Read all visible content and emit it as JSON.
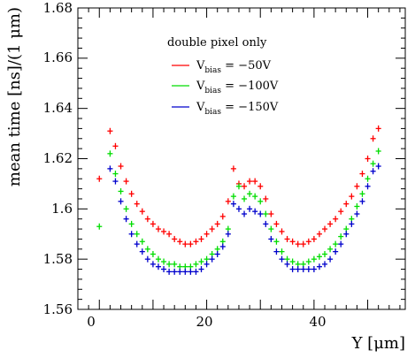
{
  "chart_data": {
    "type": "scatter",
    "title": "",
    "xlabel": "Y [μm]",
    "ylabel": "mean time [ns]/(1 μm)",
    "xlim": [
      -4,
      57
    ],
    "ylim": [
      1.56,
      1.68
    ],
    "x_ticks": [
      "0",
      "20",
      "40"
    ],
    "y_ticks": [
      "1.56",
      "1.58",
      "1.6",
      "1.62",
      "1.64",
      "1.66",
      "1.68"
    ],
    "legend": {
      "placement": "top-center",
      "header": "double pixel only",
      "entries": [
        {
          "prefix": "V",
          "sub": "bias",
          "suffix": " = −50V",
          "color": "#ff0000"
        },
        {
          "prefix": "V",
          "sub": "bias",
          "suffix": " = −100V",
          "color": "#00dd00"
        },
        {
          "prefix": "V",
          "sub": "bias",
          "suffix": " = −150V",
          "color": "#0000cc"
        }
      ]
    },
    "x": [
      0,
      1,
      2,
      3,
      4,
      5,
      6,
      7,
      8,
      9,
      10,
      11,
      12,
      13,
      14,
      15,
      16,
      17,
      18,
      19,
      20,
      21,
      22,
      23,
      24,
      25,
      26,
      27,
      28,
      29,
      30,
      31,
      32,
      33,
      34,
      35,
      36,
      37,
      38,
      39,
      40,
      41,
      42,
      43,
      44,
      45,
      46,
      47,
      48,
      49,
      50,
      51,
      52,
      53
    ],
    "series": [
      {
        "color": "#ff0000",
        "values": [
          1.612,
          null,
          1.631,
          1.625,
          1.617,
          1.611,
          1.606,
          1.602,
          1.599,
          1.596,
          1.594,
          1.592,
          1.591,
          1.59,
          1.588,
          1.587,
          1.586,
          1.586,
          1.587,
          1.588,
          1.59,
          1.592,
          1.594,
          1.597,
          1.603,
          1.616,
          1.61,
          1.609,
          1.611,
          1.611,
          1.609,
          1.604,
          1.598,
          1.594,
          1.591,
          1.588,
          1.587,
          1.586,
          1.586,
          1.587,
          1.588,
          1.59,
          1.592,
          1.594,
          1.596,
          1.599,
          1.602,
          1.605,
          1.609,
          1.614,
          1.62,
          1.628,
          1.632,
          null
        ]
      },
      {
        "color": "#00dd00",
        "values": [
          1.593,
          null,
          1.622,
          1.614,
          1.607,
          1.6,
          1.594,
          1.59,
          1.587,
          1.584,
          1.582,
          1.58,
          1.579,
          1.578,
          1.578,
          1.577,
          1.577,
          1.577,
          1.578,
          1.579,
          1.58,
          1.582,
          1.584,
          1.587,
          1.592,
          1.605,
          1.609,
          1.604,
          1.606,
          1.605,
          1.603,
          1.598,
          1.592,
          1.587,
          1.583,
          1.58,
          1.579,
          1.578,
          1.578,
          1.579,
          1.58,
          1.581,
          1.582,
          1.584,
          1.586,
          1.589,
          1.592,
          1.596,
          1.601,
          1.606,
          1.612,
          1.618,
          1.623,
          null
        ]
      },
      {
        "color": "#0000cc",
        "values": [
          null,
          null,
          1.616,
          1.611,
          1.603,
          1.596,
          1.59,
          1.586,
          1.583,
          1.58,
          1.578,
          1.577,
          1.576,
          1.575,
          1.575,
          1.575,
          1.575,
          1.575,
          1.575,
          1.576,
          1.578,
          1.58,
          1.582,
          1.585,
          1.59,
          1.602,
          1.6,
          1.598,
          1.6,
          1.599,
          1.598,
          1.594,
          1.588,
          1.583,
          1.58,
          1.578,
          1.576,
          1.576,
          1.576,
          1.576,
          1.576,
          1.577,
          1.578,
          1.58,
          1.583,
          1.586,
          1.59,
          1.594,
          1.598,
          1.603,
          1.609,
          1.615,
          1.617,
          null
        ]
      }
    ]
  }
}
